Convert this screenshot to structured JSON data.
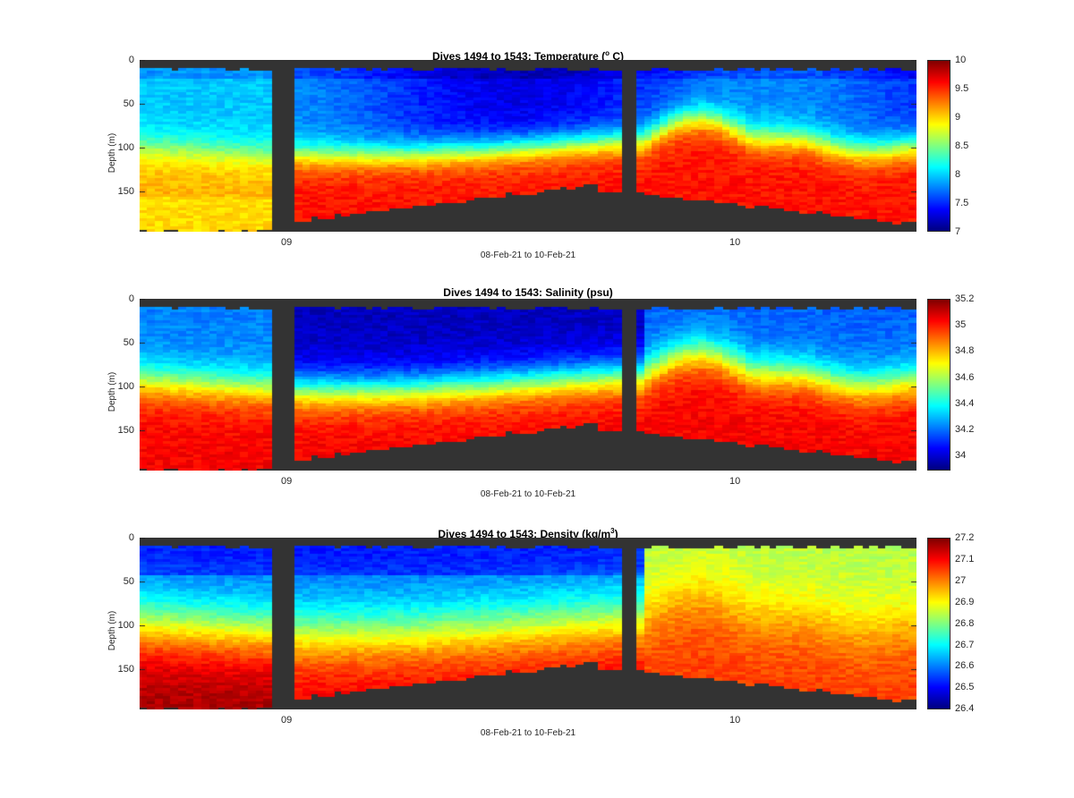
{
  "panels": [
    {
      "id": "temperature",
      "title": "Dives 1494 to 1543: Temperature (",
      "title_sup": "o",
      "title_suffix": " C)",
      "ylabel": "Depth (m)",
      "xlabel": "08-Feb-21 to 10-Feb-21",
      "yticks": [
        "0",
        "50",
        "100",
        "150"
      ],
      "xticks": [
        "09",
        "10"
      ],
      "colorbar_ticks": [
        "10",
        "9.5",
        "9",
        "8.5",
        "8",
        "7.5",
        "7"
      ],
      "clim": [
        7,
        10
      ]
    },
    {
      "id": "salinity",
      "title": "Dives 1494 to 1543: Salinity (psu)",
      "title_sup": "",
      "title_suffix": "",
      "ylabel": "Depth (m)",
      "xlabel": "08-Feb-21 to 10-Feb-21",
      "yticks": [
        "0",
        "50",
        "100",
        "150"
      ],
      "xticks": [
        "09",
        "10"
      ],
      "colorbar_ticks": [
        "35.2",
        "35",
        "34.8",
        "34.6",
        "34.4",
        "34.2",
        "34"
      ],
      "clim": [
        33.95,
        35.2
      ]
    },
    {
      "id": "density",
      "title": "Dives 1494 to 1543: Density (kg/m",
      "title_sup": "3",
      "title_suffix": ")",
      "ylabel": "Depth (m)",
      "xlabel": "08-Feb-21 to 10-Feb-21",
      "yticks": [
        "0",
        "50",
        "100",
        "150"
      ],
      "xticks": [
        "09",
        "10"
      ],
      "colorbar_ticks": [
        "27.2",
        "27.1",
        "27",
        "26.9",
        "26.8",
        "26.7",
        "26.6",
        "26.5",
        "26.4"
      ],
      "clim": [
        26.4,
        27.2
      ]
    }
  ],
  "chart_data": [
    {
      "type": "heatmap",
      "title": "Dives 1494 to 1543: Temperature (o C)",
      "xlabel": "08-Feb-21 to 10-Feb-21",
      "ylabel": "Depth (m)",
      "colormap": "jet",
      "colorbar_range": [
        7,
        10
      ],
      "ylim": [
        195,
        0
      ],
      "approx_profile": {
        "surface_value": 7.8,
        "thermocline_depth_m": 95,
        "deep_value": 9.6
      }
    },
    {
      "type": "heatmap",
      "title": "Dives 1494 to 1543: Salinity (psu)",
      "xlabel": "08-Feb-21 to 10-Feb-21",
      "ylabel": "Depth (m)",
      "colormap": "jet",
      "colorbar_range": [
        33.95,
        35.2
      ],
      "ylim": [
        195,
        0
      ],
      "approx_profile": {
        "surface_value": 34.05,
        "halocline_depth_m": 90,
        "deep_value": 35.05
      }
    },
    {
      "type": "heatmap",
      "title": "Dives 1494 to 1543: Density (kg/m3)",
      "xlabel": "08-Feb-21 to 10-Feb-21",
      "ylabel": "Depth (m)",
      "colormap": "jet",
      "colorbar_range": [
        26.4,
        27.2
      ],
      "ylim": [
        195,
        0
      ],
      "approx_profile": {
        "surface_value": 26.6,
        "pycnocline_depth_m": 90,
        "deep_value": 27.1
      }
    }
  ],
  "colors": {
    "background": "#ffffff",
    "no_data": "#333333",
    "axis": "#262626"
  }
}
